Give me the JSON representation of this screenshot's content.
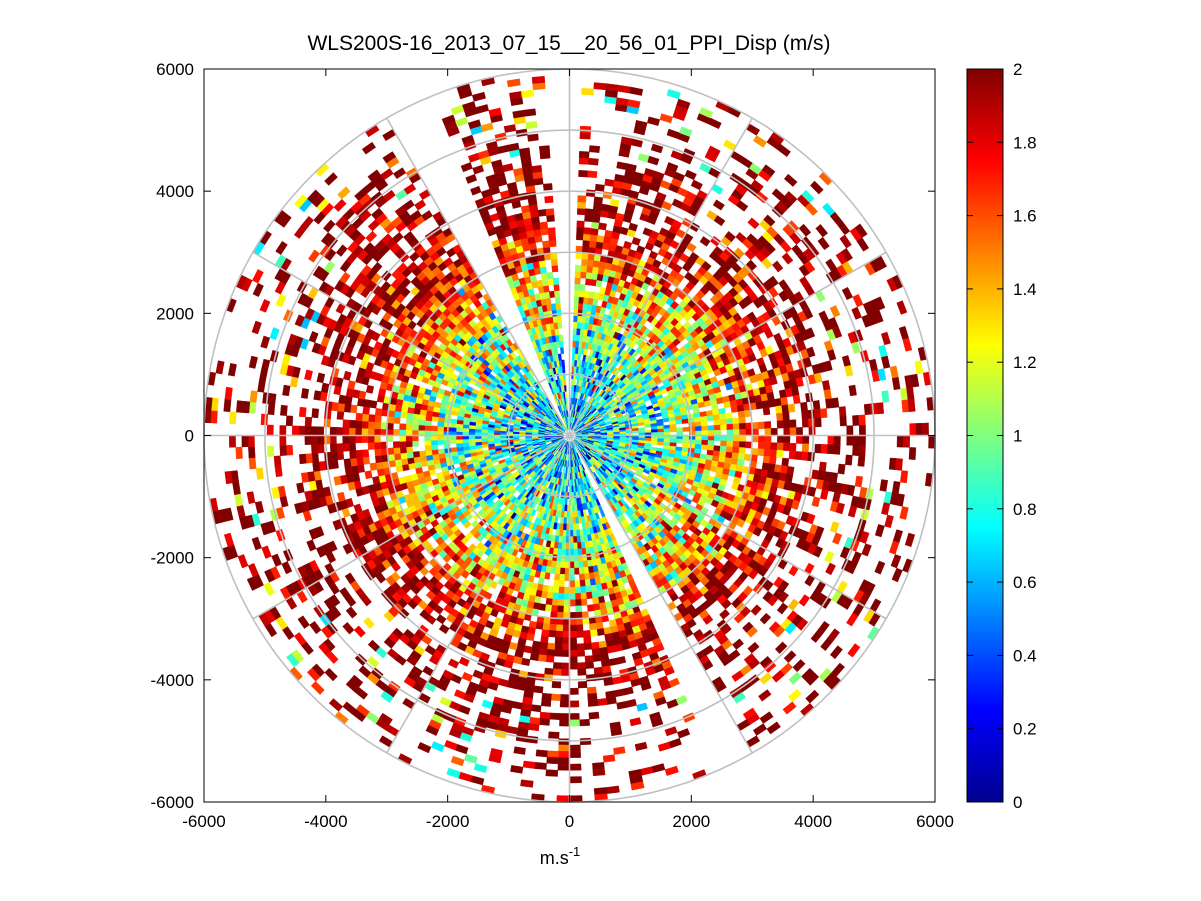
{
  "chart_data": {
    "type": "heatmap",
    "subtype": "polar-ppi",
    "title": "WLS200S-16_2013_07_15__20_56_01_PPI_Disp (m/s)",
    "xlabel_base": "m.s",
    "xlabel_sup": "-1",
    "ylabel": "",
    "xlim": [
      -6000,
      6000
    ],
    "ylim": [
      -6000,
      6000
    ],
    "x_ticks": [
      -6000,
      -4000,
      -2000,
      0,
      2000,
      4000,
      6000
    ],
    "y_ticks": [
      6000,
      4000,
      2000,
      0,
      -2000,
      -4000,
      -6000
    ],
    "x_tick_labels": [
      "-6000",
      "-4000",
      "-2000",
      "0",
      "2000",
      "4000",
      "6000"
    ],
    "y_tick_labels": [
      "6000",
      "4000",
      "2000",
      "0",
      "-2000",
      "-4000",
      "-6000"
    ],
    "range_rings": [
      1000,
      2000,
      3000,
      4000,
      5000,
      6000
    ],
    "spoke_angles_deg": [
      0,
      30,
      60,
      90,
      120,
      150,
      180,
      210,
      240,
      270,
      300,
      330
    ],
    "max_range": 6000,
    "range_bins": 58,
    "azimuth_bins": 180,
    "sector_gaps_deg": [
      [
        -3,
        2
      ],
      [
        -29,
        -22
      ],
      [
        150,
        156
      ]
    ],
    "colorbar": {
      "min": 0,
      "max": 2,
      "colormap": "jet",
      "ticks": [
        0,
        0.2,
        0.4,
        0.6,
        0.8,
        1,
        1.2,
        1.4,
        1.6,
        1.8,
        2
      ],
      "tick_labels": [
        "0",
        "0.2",
        "0.4",
        "0.6",
        "0.8",
        "1",
        "1.2",
        "1.4",
        "1.6",
        "1.8",
        "2"
      ]
    },
    "value_profile": {
      "description": "dispersion (m/s) vs range: ~0.5-1.0 near center rising to saturated 2 beyond ~3500 m; data sparse beyond ~4500 m",
      "range_m": [
        0,
        1000,
        2000,
        3000,
        3500,
        4500,
        6000
      ],
      "mean_value": [
        0.6,
        0.8,
        1.1,
        1.6,
        1.9,
        2.0,
        2.0
      ],
      "fill_probability": [
        0.98,
        0.97,
        0.93,
        0.85,
        0.72,
        0.4,
        0.18
      ]
    }
  }
}
